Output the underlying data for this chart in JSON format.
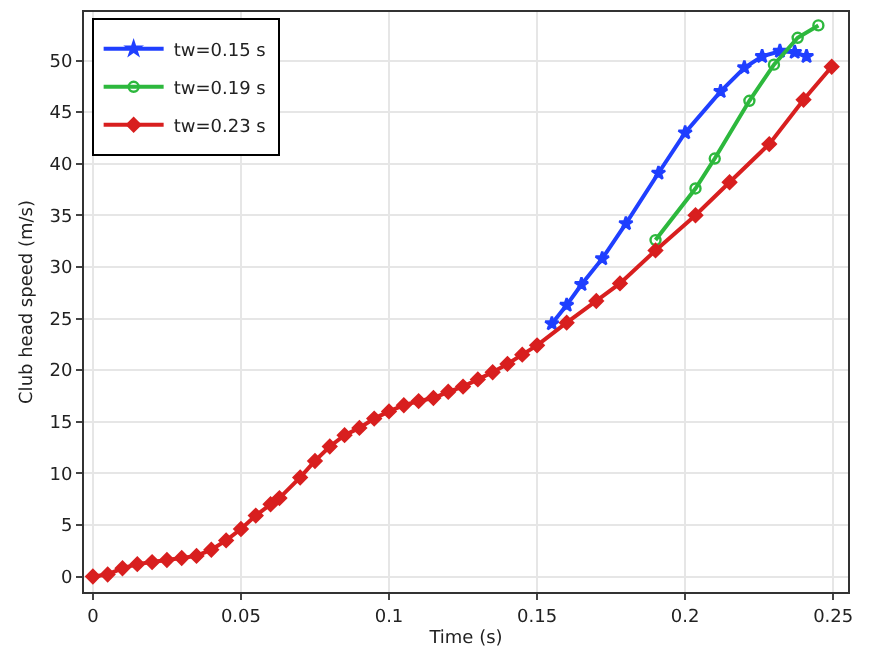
{
  "chart_data": {
    "type": "line",
    "xlabel": "Time (s)",
    "ylabel": "Club head speed (m/s)",
    "xlim": [
      -0.003,
      0.255
    ],
    "xticks": [
      0,
      0.05,
      0.1,
      0.15,
      0.2,
      0.25
    ],
    "ylim": [
      -1.5,
      54.7
    ],
    "yticks": [
      0,
      5,
      10,
      15,
      20,
      25,
      30,
      35,
      40,
      45,
      50
    ],
    "grid": true,
    "legend": "top left",
    "line_style": "solid",
    "series": [
      {
        "name": "tw=0.15 s",
        "color": "#1f3fff",
        "marker": "star",
        "x": [
          0.155,
          0.16,
          0.165,
          0.172,
          0.18,
          0.191,
          0.2,
          0.212,
          0.22,
          0.226,
          0.232,
          0.237,
          0.241
        ],
        "values": [
          24.5,
          26.3,
          28.3,
          30.8,
          34.2,
          39.1,
          43.0,
          47.0,
          49.3,
          50.4,
          50.9,
          50.8,
          50.4
        ]
      },
      {
        "name": "tw=0.19 s",
        "color": "#2db83d",
        "marker": "circle",
        "x": [
          0.19,
          0.2035,
          0.21,
          0.2217,
          0.23,
          0.238,
          0.245
        ],
        "values": [
          32.6,
          37.6,
          40.5,
          46.1,
          49.6,
          52.2,
          53.4
        ]
      },
      {
        "name": "tw=0.23 s",
        "color": "#d81f1f",
        "marker": "diamond",
        "x": [
          0,
          0.005,
          0.01,
          0.015,
          0.02,
          0.025,
          0.03,
          0.035,
          0.04,
          0.045,
          0.05,
          0.055,
          0.06,
          0.063,
          0.07,
          0.075,
          0.08,
          0.085,
          0.09,
          0.095,
          0.1,
          0.105,
          0.11,
          0.115,
          0.12,
          0.125,
          0.13,
          0.135,
          0.14,
          0.145,
          0.15,
          0.16,
          0.17,
          0.178,
          0.19,
          0.2035,
          0.215,
          0.2284,
          0.24,
          0.2495
        ],
        "values": [
          0,
          0.2,
          0.8,
          1.2,
          1.4,
          1.6,
          1.8,
          2.0,
          2.6,
          3.5,
          4.6,
          5.9,
          7.0,
          7.6,
          9.6,
          11.2,
          12.6,
          13.7,
          14.4,
          15.3,
          16.0,
          16.6,
          17.0,
          17.3,
          17.9,
          18.4,
          19.1,
          19.8,
          20.6,
          21.5,
          22.4,
          24.6,
          26.7,
          28.4,
          31.6,
          35.0,
          38.2,
          41.9,
          46.2,
          49.4
        ]
      }
    ]
  }
}
